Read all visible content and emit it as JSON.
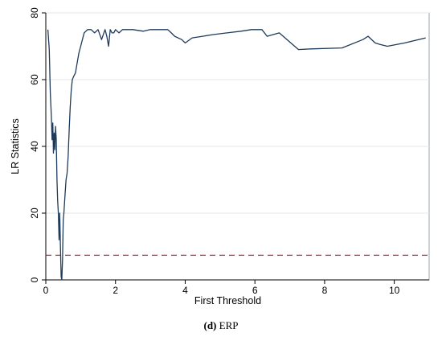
{
  "chart_data": {
    "type": "line",
    "xlabel": "First Threshold",
    "ylabel": "LR Statistics",
    "xlim": [
      0,
      11
    ],
    "ylim": [
      0,
      80
    ],
    "xticks": [
      "0",
      "2",
      "4",
      "6",
      "8",
      "10"
    ],
    "yticks": [
      "0",
      "20",
      "40",
      "60",
      "80"
    ],
    "grid": "horizontal",
    "background": "#ffffff",
    "series": [
      {
        "color": "#1f3b5a",
        "x": [
          0.06,
          0.1,
          0.13,
          0.16,
          0.18,
          0.2,
          0.22,
          0.24,
          0.26,
          0.28,
          0.3,
          0.32,
          0.34,
          0.36,
          0.38,
          0.4,
          0.42,
          0.44,
          0.46,
          0.48,
          0.5,
          0.52,
          0.55,
          0.58,
          0.61,
          0.64,
          0.67,
          0.7,
          0.73,
          0.76,
          0.8,
          0.85,
          0.9,
          0.95,
          1.0,
          1.1,
          1.2,
          1.3,
          1.4,
          1.5,
          1.6,
          1.7,
          1.75,
          1.8,
          1.85,
          1.9,
          1.95,
          2.0,
          2.1,
          2.2,
          2.5,
          2.8,
          3.0,
          3.3,
          3.5,
          3.6,
          3.7,
          3.9,
          4.0,
          4.2,
          4.5,
          4.8,
          5.2,
          5.6,
          5.9,
          6.2,
          6.35,
          6.7,
          7.25,
          7.6,
          8.5,
          9.1,
          9.25,
          9.45,
          9.6,
          9.8,
          10.3,
          10.9
        ],
        "values": [
          75,
          69,
          56,
          49,
          42,
          47,
          38,
          44,
          39,
          46,
          42,
          30,
          24,
          20,
          12,
          20,
          10,
          1,
          0,
          6,
          18,
          20,
          25,
          30,
          32,
          37,
          45,
          52,
          57,
          60,
          61,
          62,
          65,
          68,
          70,
          74,
          75,
          75,
          74,
          75,
          72,
          75,
          73,
          70,
          75,
          74,
          74,
          75,
          74,
          75,
          75,
          74.5,
          75,
          75,
          75,
          74,
          73,
          72,
          71,
          72.5,
          73,
          73.5,
          74,
          74.5,
          75,
          75,
          73,
          74,
          69,
          69.2,
          69.5,
          72,
          73,
          71,
          70.5,
          70,
          71,
          72.5
        ]
      }
    ],
    "reference_line": {
      "y": 7.4,
      "color": "#c8102e",
      "style": "dashed"
    }
  },
  "caption": {
    "label": "(d)",
    "text": "ERP"
  }
}
